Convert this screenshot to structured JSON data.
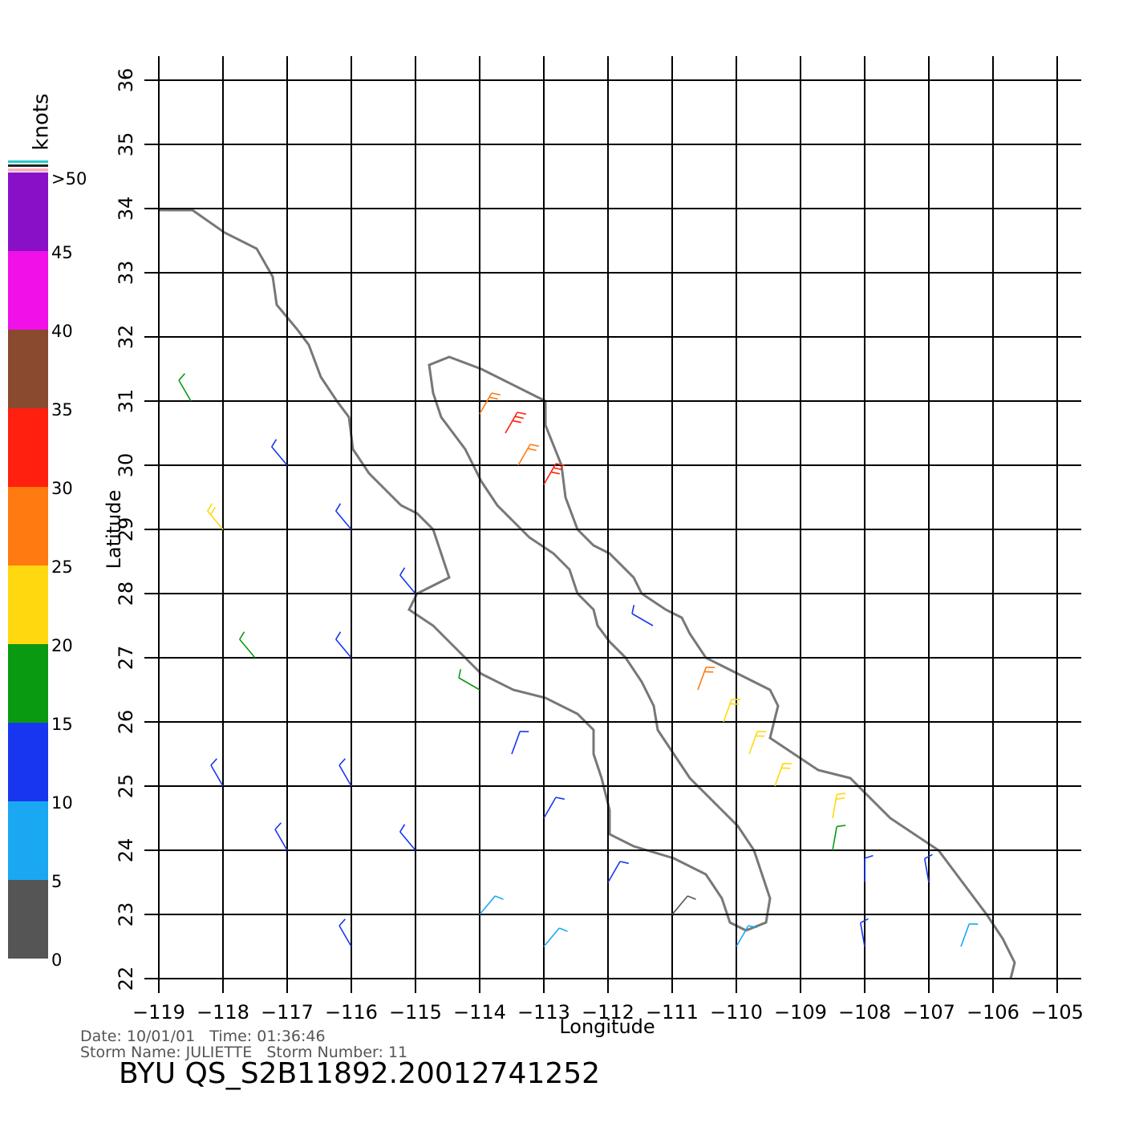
{
  "map": {
    "x_label": "Longitude",
    "y_label": "Latitude",
    "xticks": [
      {
        "value": -119,
        "label": "−119"
      },
      {
        "value": -118,
        "label": "−118"
      },
      {
        "value": -117,
        "label": "−117"
      },
      {
        "value": -116,
        "label": "−116"
      },
      {
        "value": -115,
        "label": "−115"
      },
      {
        "value": -114,
        "label": "−114"
      },
      {
        "value": -113,
        "label": "−113"
      },
      {
        "value": -112,
        "label": "−112"
      },
      {
        "value": -111,
        "label": "−111"
      },
      {
        "value": -110,
        "label": "−110"
      },
      {
        "value": -109,
        "label": "−109"
      },
      {
        "value": -108,
        "label": "−108"
      },
      {
        "value": -107,
        "label": "−107"
      },
      {
        "value": -106,
        "label": "−106"
      },
      {
        "value": -105,
        "label": "−105"
      }
    ],
    "yticks": [
      22,
      23,
      24,
      25,
      26,
      27,
      28,
      29,
      30,
      31,
      32,
      33,
      34,
      35,
      36
    ],
    "xlim": [
      -119,
      -105
    ],
    "ylim": [
      22,
      36
    ]
  },
  "colorbar": {
    "unit": "knots",
    "labels": [
      "0",
      "5",
      "10",
      "15",
      "20",
      "25",
      "30",
      "35",
      "40",
      "45",
      ">50"
    ],
    "colors": [
      "#555555",
      "#1aa8f2",
      "#1836f0",
      "#0a9a12",
      "#ffd810",
      "#ff7a10",
      "#ff2010",
      "#8a4a30",
      "#f010e8",
      "#8a10c8"
    ]
  },
  "wind": {
    "barbs": [
      {
        "lon": -118.5,
        "lat": 31,
        "speed": 17,
        "dir": 330
      },
      {
        "lon": -118,
        "lat": 29,
        "speed": 22,
        "dir": 320
      },
      {
        "lon": -117,
        "lat": 30,
        "speed": 12,
        "dir": 320
      },
      {
        "lon": -116,
        "lat": 29,
        "speed": 12,
        "dir": 320
      },
      {
        "lon": -117.5,
        "lat": 27,
        "speed": 17,
        "dir": 320
      },
      {
        "lon": -116,
        "lat": 27,
        "speed": 12,
        "dir": 320
      },
      {
        "lon": -115,
        "lat": 28,
        "speed": 12,
        "dir": 320
      },
      {
        "lon": -114,
        "lat": 26.5,
        "speed": 17,
        "dir": 300
      },
      {
        "lon": -118,
        "lat": 25,
        "speed": 12,
        "dir": 330
      },
      {
        "lon": -117,
        "lat": 24,
        "speed": 12,
        "dir": 330
      },
      {
        "lon": -116,
        "lat": 25,
        "speed": 12,
        "dir": 330
      },
      {
        "lon": -115,
        "lat": 24,
        "speed": 10,
        "dir": 320
      },
      {
        "lon": -113.5,
        "lat": 25.5,
        "speed": 12,
        "dir": 20
      },
      {
        "lon": -113,
        "lat": 24.5,
        "speed": 10,
        "dir": 30
      },
      {
        "lon": -114,
        "lat": 23,
        "speed": 8,
        "dir": 40
      },
      {
        "lon": -112,
        "lat": 23.5,
        "speed": 10,
        "dir": 30
      },
      {
        "lon": -111,
        "lat": 23,
        "speed": 4,
        "dir": 40
      },
      {
        "lon": -116,
        "lat": 22.5,
        "speed": 10,
        "dir": 330
      },
      {
        "lon": -113,
        "lat": 22.5,
        "speed": 8,
        "dir": 40
      },
      {
        "lon": -110,
        "lat": 22.5,
        "speed": 9,
        "dir": 30
      },
      {
        "lon": -108,
        "lat": 22.5,
        "speed": 12,
        "dir": 350
      },
      {
        "lon": -106.5,
        "lat": 22.5,
        "speed": 8,
        "dir": 20
      },
      {
        "lon": -108.5,
        "lat": 24,
        "speed": 17,
        "dir": 10
      },
      {
        "lon": -108,
        "lat": 23.5,
        "speed": 13,
        "dir": 0
      },
      {
        "lon": -107,
        "lat": 23.5,
        "speed": 12,
        "dir": 350
      },
      {
        "lon": -108.5,
        "lat": 24.5,
        "speed": 22,
        "dir": 10
      },
      {
        "lon": -114,
        "lat": 30.8,
        "speed": 27,
        "dir": 30
      },
      {
        "lon": -113.6,
        "lat": 30.5,
        "speed": 30,
        "dir": 30
      },
      {
        "lon": -113.4,
        "lat": 30,
        "speed": 26,
        "dir": 30
      },
      {
        "lon": -113,
        "lat": 29.7,
        "speed": 30,
        "dir": 30
      },
      {
        "lon": -111.3,
        "lat": 27.5,
        "speed": 13,
        "dir": 300
      },
      {
        "lon": -110.6,
        "lat": 26.5,
        "speed": 27,
        "dir": 20
      },
      {
        "lon": -110.2,
        "lat": 26,
        "speed": 24,
        "dir": 20
      },
      {
        "lon": -109.8,
        "lat": 25.5,
        "speed": 22,
        "dir": 20
      },
      {
        "lon": -109.4,
        "lat": 25,
        "speed": 20,
        "dir": 20
      }
    ]
  },
  "footer": {
    "line1": "Date: 10/01/01   Time: 01:36:46",
    "line2": "Storm Name: JULIETTE   Storm Number: 11",
    "title": "BYU  QS_S2B11892.20012741252"
  }
}
